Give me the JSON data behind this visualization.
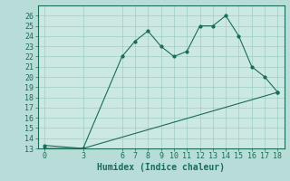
{
  "line1_x": [
    0,
    3,
    6,
    7,
    8,
    9,
    10,
    11,
    12,
    13,
    14,
    15,
    16,
    17,
    18
  ],
  "line1_y": [
    13,
    13,
    22,
    23.5,
    24.5,
    23,
    22,
    22.5,
    25,
    25,
    26,
    24,
    21,
    20,
    18.5
  ],
  "line2_x": [
    0,
    3,
    18
  ],
  "line2_y": [
    13.3,
    13,
    18.5
  ],
  "line_color": "#1a6b5a",
  "bg_color": "#b8ddd8",
  "plot_bg_color": "#cce8e2",
  "grid_color": "#9ecdc6",
  "xlabel": "Humidex (Indice chaleur)",
  "ylim": [
    13,
    27
  ],
  "xlim": [
    -0.5,
    18.5
  ],
  "xticks": [
    0,
    3,
    6,
    7,
    8,
    9,
    10,
    11,
    12,
    13,
    14,
    15,
    16,
    17,
    18
  ],
  "yticks": [
    13,
    14,
    15,
    16,
    17,
    18,
    19,
    20,
    21,
    22,
    23,
    24,
    25,
    26
  ],
  "label_fontsize": 7,
  "tick_fontsize": 6
}
